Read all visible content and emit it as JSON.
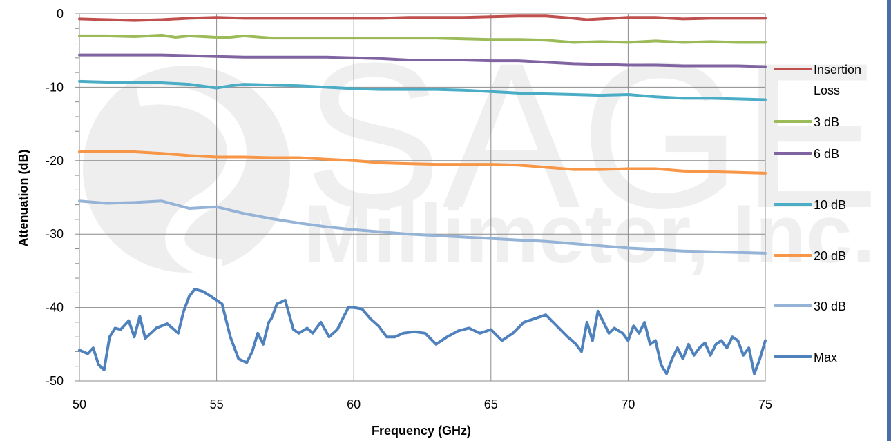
{
  "watermark": {
    "line1": "SAGE",
    "line2": "Millimeter, Inc."
  },
  "chart_data": {
    "type": "line",
    "xlabel": "Frequency (GHz)",
    "ylabel": "Attenuation (dB)",
    "xlim": [
      50,
      75
    ],
    "ylim": [
      -50,
      0
    ],
    "xticks": [
      50,
      55,
      60,
      65,
      70,
      75
    ],
    "yticks": [
      0,
      -10,
      -20,
      -30,
      -40,
      -50
    ],
    "grid": true,
    "legend_position": "right",
    "series": [
      {
        "name": "Insertion Loss",
        "legend_lines": [
          "Insertion",
          "Loss"
        ],
        "color": "#c0504d",
        "x": [
          50,
          51,
          52,
          53,
          54,
          55,
          56,
          57,
          58,
          59,
          60,
          61,
          62,
          63,
          64,
          65,
          66,
          67,
          68,
          68.5,
          69,
          70,
          71,
          72,
          73,
          74,
          75
        ],
        "y": [
          -0.7,
          -0.8,
          -0.9,
          -0.8,
          -0.6,
          -0.5,
          -0.6,
          -0.6,
          -0.6,
          -0.6,
          -0.6,
          -0.6,
          -0.5,
          -0.5,
          -0.5,
          -0.4,
          -0.3,
          -0.3,
          -0.6,
          -0.8,
          -0.7,
          -0.5,
          -0.5,
          -0.7,
          -0.6,
          -0.6,
          -0.6
        ]
      },
      {
        "name": "3 dB",
        "color": "#9bbb59",
        "x": [
          50,
          51,
          52,
          53,
          53.5,
          54,
          55,
          55.5,
          56,
          57,
          58,
          60,
          62,
          63,
          64,
          65,
          66,
          67,
          68,
          69,
          70,
          71,
          72,
          73,
          74,
          75
        ],
        "y": [
          -3.0,
          -3.0,
          -3.1,
          -2.9,
          -3.2,
          -3.0,
          -3.2,
          -3.2,
          -3.0,
          -3.3,
          -3.3,
          -3.3,
          -3.3,
          -3.3,
          -3.4,
          -3.5,
          -3.5,
          -3.6,
          -3.9,
          -3.8,
          -3.9,
          -3.7,
          -3.9,
          -3.8,
          -3.9,
          -3.9
        ]
      },
      {
        "name": "6 dB",
        "color": "#8064a2",
        "x": [
          50,
          51,
          52,
          53,
          54,
          55,
          56,
          57,
          58,
          59,
          60,
          61,
          62,
          63,
          64,
          65,
          66,
          67,
          68,
          69,
          70,
          71,
          72,
          73,
          74,
          75
        ],
        "y": [
          -5.6,
          -5.6,
          -5.6,
          -5.6,
          -5.7,
          -5.8,
          -5.9,
          -5.9,
          -5.9,
          -5.9,
          -6.0,
          -6.1,
          -6.3,
          -6.3,
          -6.3,
          -6.4,
          -6.4,
          -6.6,
          -6.8,
          -6.9,
          -7.0,
          -7.0,
          -7.1,
          -7.1,
          -7.1,
          -7.2
        ]
      },
      {
        "name": "10 dB",
        "color": "#4bacc6",
        "x": [
          50,
          51,
          52,
          53,
          54,
          55,
          55.5,
          56,
          57,
          58,
          59,
          60,
          61,
          62,
          63,
          64,
          65,
          66,
          67,
          68,
          69,
          70,
          71,
          72,
          73,
          74,
          75
        ],
        "y": [
          -9.2,
          -9.3,
          -9.3,
          -9.4,
          -9.6,
          -10.1,
          -9.8,
          -9.6,
          -9.7,
          -9.8,
          -10.0,
          -10.2,
          -10.3,
          -10.3,
          -10.3,
          -10.4,
          -10.6,
          -10.8,
          -10.9,
          -11.0,
          -11.1,
          -11.0,
          -11.3,
          -11.5,
          -11.5,
          -11.6,
          -11.7
        ]
      },
      {
        "name": "20 dB",
        "color": "#f79646",
        "x": [
          50,
          51,
          52,
          53,
          54,
          55,
          56,
          57,
          58,
          59,
          60,
          61,
          62,
          63,
          64,
          65,
          66,
          67,
          68,
          69,
          70,
          71,
          72,
          73,
          74,
          75
        ],
        "y": [
          -18.8,
          -18.7,
          -18.8,
          -19.0,
          -19.3,
          -19.5,
          -19.5,
          -19.6,
          -19.6,
          -19.8,
          -20.0,
          -20.3,
          -20.4,
          -20.5,
          -20.5,
          -20.5,
          -20.6,
          -20.9,
          -21.2,
          -21.2,
          -21.1,
          -21.1,
          -21.4,
          -21.5,
          -21.6,
          -21.7
        ]
      },
      {
        "name": "30 dB",
        "color": "#95b3d7",
        "x": [
          50,
          51,
          52,
          53,
          53.5,
          54,
          55,
          56,
          57,
          58,
          59,
          60,
          61,
          62,
          63,
          64,
          65,
          66,
          67,
          68,
          69,
          70,
          71,
          72,
          73,
          74,
          75
        ],
        "y": [
          -25.5,
          -25.8,
          -25.7,
          -25.5,
          -26.0,
          -26.5,
          -26.3,
          -27.2,
          -27.9,
          -28.5,
          -29.0,
          -29.4,
          -29.7,
          -30.0,
          -30.2,
          -30.4,
          -30.6,
          -30.8,
          -31.0,
          -31.3,
          -31.6,
          -31.9,
          -32.1,
          -32.3,
          -32.4,
          -32.5,
          -32.6
        ]
      },
      {
        "name": "Max",
        "color": "#4f81bd",
        "x": [
          50,
          50.3,
          50.5,
          50.7,
          50.9,
          51.1,
          51.3,
          51.5,
          51.8,
          52.0,
          52.2,
          52.4,
          52.6,
          52.8,
          53.2,
          53.6,
          53.8,
          54.0,
          54.2,
          54.5,
          54.8,
          55.2,
          55.5,
          55.8,
          56.1,
          56.3,
          56.5,
          56.7,
          56.9,
          57.0,
          57.2,
          57.5,
          57.8,
          58.0,
          58.3,
          58.5,
          58.8,
          59.1,
          59.4,
          59.6,
          59.8,
          60.0,
          60.3,
          60.6,
          60.9,
          61.2,
          61.5,
          61.8,
          62.2,
          62.6,
          63.0,
          63.4,
          63.8,
          64.2,
          64.6,
          65.0,
          65.4,
          65.8,
          66.2,
          66.6,
          67.0,
          67.4,
          67.8,
          68.1,
          68.3,
          68.5,
          68.7,
          68.9,
          69.1,
          69.3,
          69.5,
          69.8,
          70.0,
          70.2,
          70.4,
          70.6,
          70.8,
          71.0,
          71.2,
          71.4,
          71.6,
          71.8,
          72.0,
          72.2,
          72.4,
          72.6,
          72.8,
          73.0,
          73.2,
          73.4,
          73.6,
          73.8,
          74.0,
          74.2,
          74.4,
          74.6,
          74.8,
          75.0
        ],
        "y": [
          -45.8,
          -46.3,
          -45.5,
          -47.8,
          -48.5,
          -44.0,
          -42.8,
          -43.0,
          -41.8,
          -44.0,
          -41.2,
          -44.2,
          -43.5,
          -42.8,
          -42.2,
          -43.5,
          -40.5,
          -38.5,
          -37.5,
          -37.8,
          -38.5,
          -39.5,
          -44.0,
          -47.0,
          -47.5,
          -46.0,
          -43.5,
          -45.0,
          -42.0,
          -41.5,
          -39.5,
          -39.0,
          -43.0,
          -43.5,
          -42.8,
          -43.5,
          -42.0,
          -44.0,
          -43.0,
          -41.5,
          -40.0,
          -40.0,
          -40.2,
          -41.5,
          -42.5,
          -44.0,
          -44.0,
          -43.5,
          -43.3,
          -43.5,
          -45.0,
          -44.0,
          -43.2,
          -42.8,
          -43.5,
          -43.0,
          -44.5,
          -43.5,
          -42.0,
          -41.5,
          -41.0,
          -42.5,
          -44.0,
          -45.0,
          -46.0,
          -42.0,
          -44.5,
          -40.5,
          -42.0,
          -43.5,
          -42.8,
          -43.5,
          -44.5,
          -42.5,
          -43.5,
          -42.0,
          -45.0,
          -44.5,
          -47.8,
          -49.0,
          -47.0,
          -45.5,
          -47.0,
          -45.0,
          -46.5,
          -45.5,
          -44.8,
          -46.5,
          -45.0,
          -44.5,
          -45.5,
          -44.0,
          -44.5,
          -46.5,
          -45.5,
          -49.0,
          -47.0,
          -44.5
        ]
      }
    ]
  }
}
